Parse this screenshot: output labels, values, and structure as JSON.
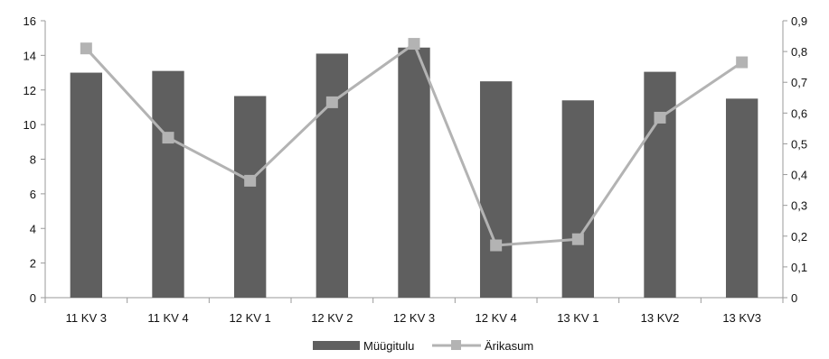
{
  "chart_data": {
    "type": "bar",
    "title": "",
    "xlabel": "",
    "ylabel": "",
    "categories": [
      "11 KV 3",
      "11 KV 4",
      "12 KV 1",
      "12 KV 2",
      "12 KV 3",
      "12 KV 4",
      "13 KV 1",
      "13 KV2",
      "13 KV3"
    ],
    "series": [
      {
        "name": "Müügitulu",
        "type": "bar",
        "axis": "left",
        "color": "#5f5f5f",
        "values": [
          13.0,
          13.1,
          11.65,
          14.1,
          14.45,
          12.5,
          11.4,
          13.05,
          11.5
        ]
      },
      {
        "name": "Ärikasum",
        "type": "line",
        "axis": "right",
        "color": "#b3b3b3",
        "values": [
          0.81,
          0.52,
          0.38,
          0.635,
          0.825,
          0.17,
          0.19,
          0.585,
          0.765
        ]
      }
    ],
    "y_left": {
      "lim": [
        0,
        16
      ],
      "ticks": [
        0,
        2,
        4,
        6,
        8,
        10,
        12,
        14,
        16
      ],
      "tick_labels": [
        "0",
        "2",
        "4",
        "6",
        "8",
        "10",
        "12",
        "14",
        "16"
      ]
    },
    "y_right": {
      "lim": [
        0,
        0.9
      ],
      "ticks": [
        0,
        0.1,
        0.2,
        0.3,
        0.4,
        0.5,
        0.6,
        0.7,
        0.8,
        0.9
      ],
      "tick_labels": [
        "0",
        "0,1",
        "0,2",
        "0,3",
        "0,4",
        "0,5",
        "0,6",
        "0,7",
        "0,8",
        "0,9"
      ]
    },
    "grid": false,
    "legend": {
      "position": "bottom",
      "entries": [
        "Müügitulu",
        "Ärikasum"
      ]
    }
  }
}
